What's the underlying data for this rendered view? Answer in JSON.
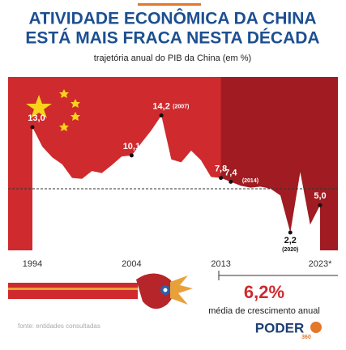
{
  "chart_data": {
    "type": "area",
    "title": "ATIVIDADE ECONÔMICA DA CHINA ESTÁ MAIS FRACA NESTA DÉCADA",
    "subtitle": "trajetória anual do PIB da China (em %)",
    "x": [
      1994,
      1995,
      1996,
      1997,
      1998,
      1999,
      2000,
      2001,
      2002,
      2003,
      2004,
      2005,
      2006,
      2007,
      2008,
      2009,
      2010,
      2011,
      2012,
      2013,
      2014,
      2015,
      2016,
      2017,
      2018,
      2019,
      2020,
      2021,
      2022,
      2023
    ],
    "values": [
      13.0,
      11.0,
      9.9,
      9.2,
      7.8,
      7.7,
      8.5,
      8.3,
      9.1,
      10.0,
      10.1,
      11.4,
      12.7,
      14.2,
      9.7,
      9.4,
      10.6,
      9.6,
      7.9,
      7.8,
      7.4,
      7.0,
      6.8,
      6.9,
      6.7,
      6.0,
      2.2,
      8.4,
      3.0,
      5.0
    ],
    "value_labels": [
      "13,0",
      null,
      null,
      null,
      null,
      null,
      null,
      null,
      null,
      null,
      "10,1",
      null,
      null,
      "14,2",
      null,
      null,
      null,
      null,
      null,
      "7,8",
      "7,4",
      null,
      null,
      null,
      null,
      null,
      "2,2",
      null,
      null,
      "5,0"
    ],
    "label_notes": [
      null,
      null,
      null,
      null,
      null,
      null,
      null,
      null,
      null,
      null,
      null,
      null,
      null,
      "(2007)",
      null,
      null,
      null,
      null,
      null,
      null,
      "(2014)",
      null,
      null,
      null,
      null,
      null,
      "(2020)",
      null,
      null,
      null
    ],
    "xlim": [
      1994,
      2023
    ],
    "xticks": [
      1994,
      2004,
      2013,
      {
        "value": 2023,
        "label": "2023*"
      }
    ],
    "ylim": [
      0,
      20
    ],
    "recent_period_start": 2013,
    "color": "#ffffff",
    "panel_color": "#cf2a2e",
    "recent_panel_color": "#a01c22",
    "highlight_value": "6,2%",
    "highlight_text": "média de crescimento anual",
    "source": "fonte: entidades consultadas",
    "brand": "PODER",
    "brand_sub": "360"
  }
}
